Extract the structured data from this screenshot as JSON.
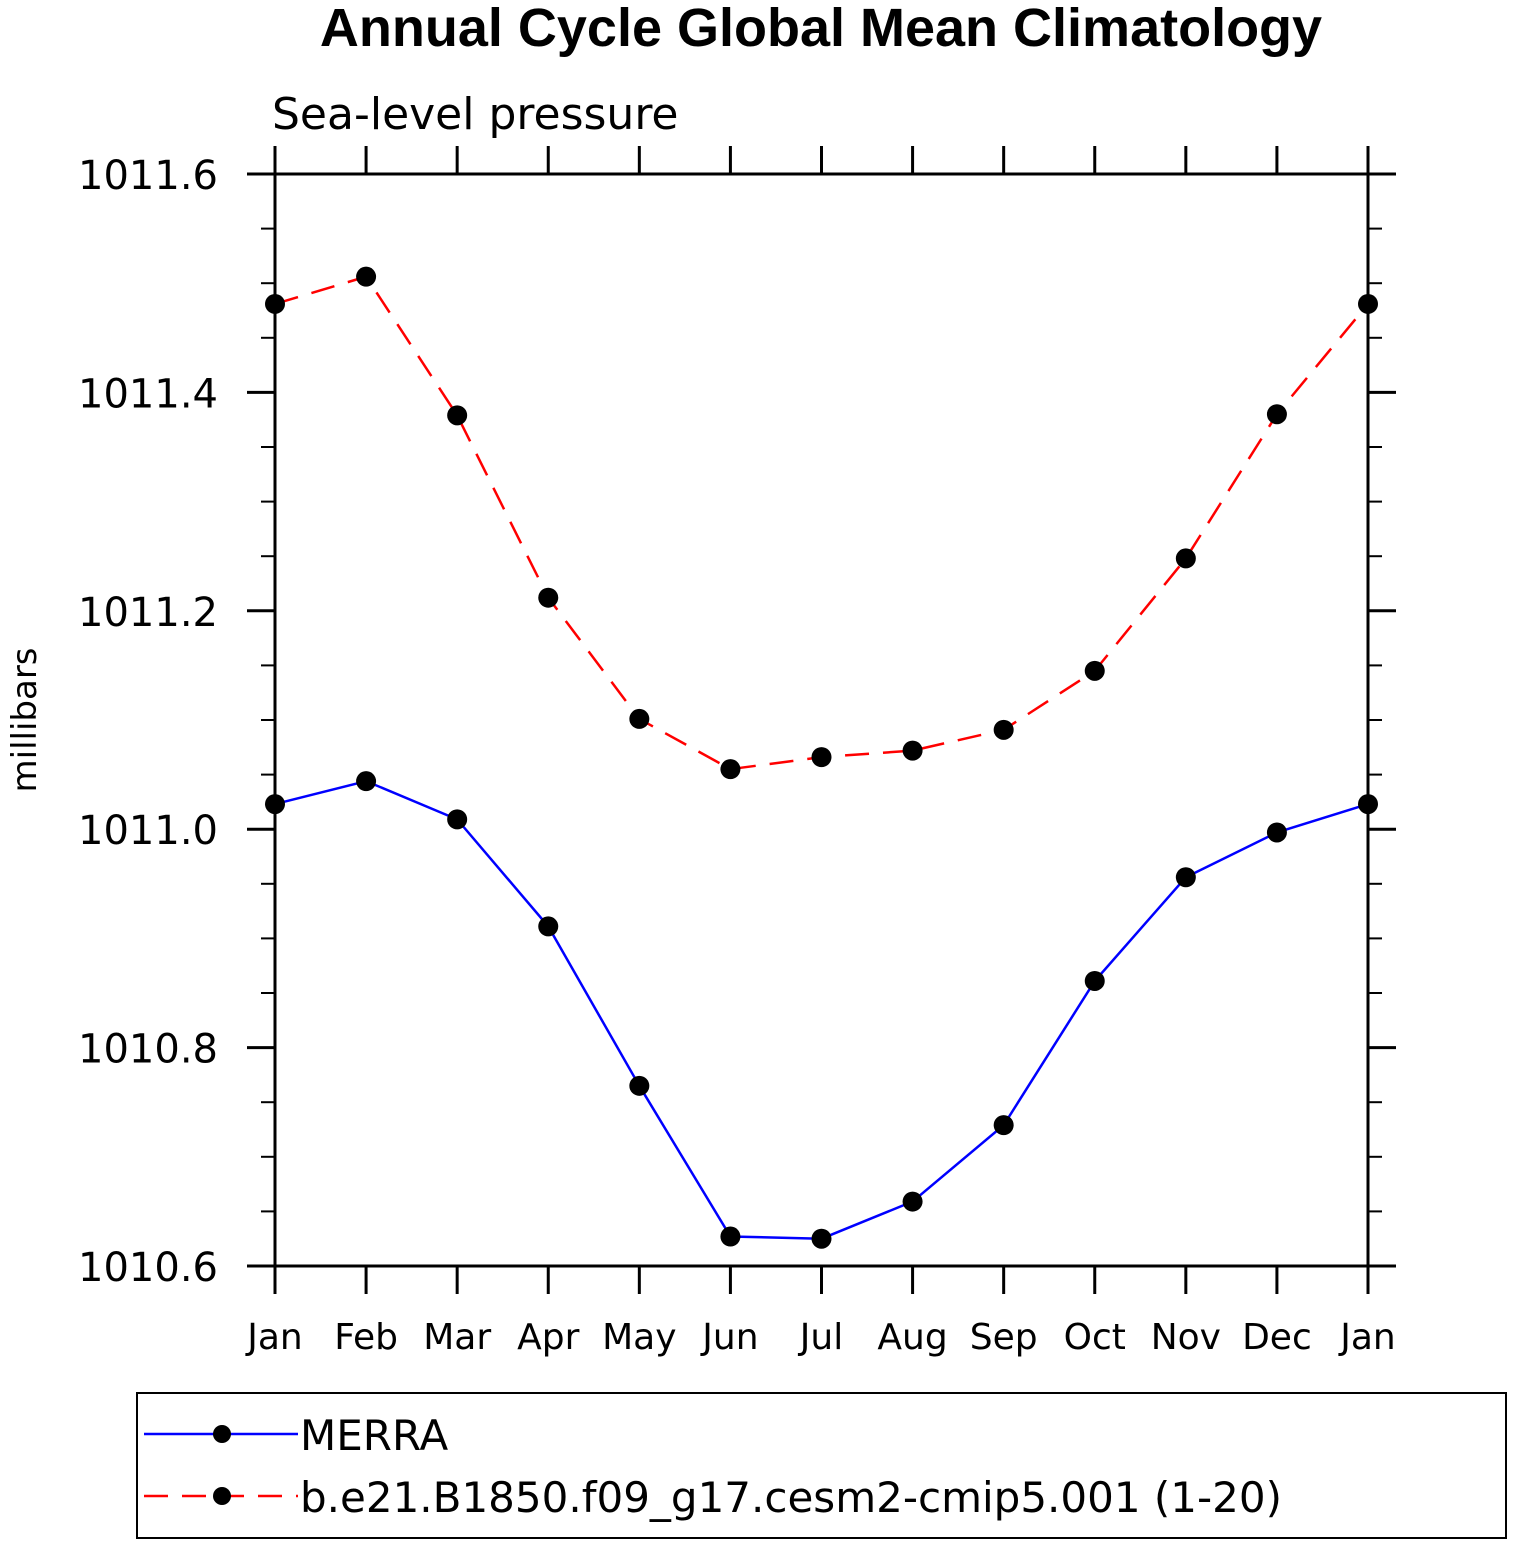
{
  "chart_data": {
    "type": "line",
    "title": "Annual Cycle Global Mean Climatology",
    "subtitle": "Sea-level pressure",
    "ylabel": "millibars",
    "categories": [
      "Jan",
      "Feb",
      "Mar",
      "Apr",
      "May",
      "Jun",
      "Jul",
      "Aug",
      "Sep",
      "Oct",
      "Nov",
      "Dec",
      "Jan"
    ],
    "ylim": [
      1010.6,
      1011.6
    ],
    "yticks": [
      "1010.6",
      "1010.8",
      "1011.0",
      "1011.2",
      "1011.4",
      "1011.6"
    ],
    "legend_position": "bottom",
    "series": [
      {
        "name": "MERRA",
        "color": "#0000ff",
        "line_style": "solid",
        "marker": "filled-circle",
        "values": [
          1011.023,
          1011.044,
          1011.009,
          1010.911,
          1010.765,
          1010.627,
          1010.625,
          1010.659,
          1010.729,
          1010.861,
          1010.956,
          1010.997,
          1011.023
        ]
      },
      {
        "name": "b.e21.B1850.f09_g17.cesm2-cmip5.001 (1-20)",
        "color": "#ff0000",
        "line_style": "dashed",
        "marker": "filled-circle",
        "values": [
          1011.481,
          1011.506,
          1011.379,
          1011.212,
          1011.101,
          1011.055,
          1011.066,
          1011.072,
          1011.091,
          1011.145,
          1011.248,
          1011.38,
          1011.481
        ]
      }
    ]
  }
}
